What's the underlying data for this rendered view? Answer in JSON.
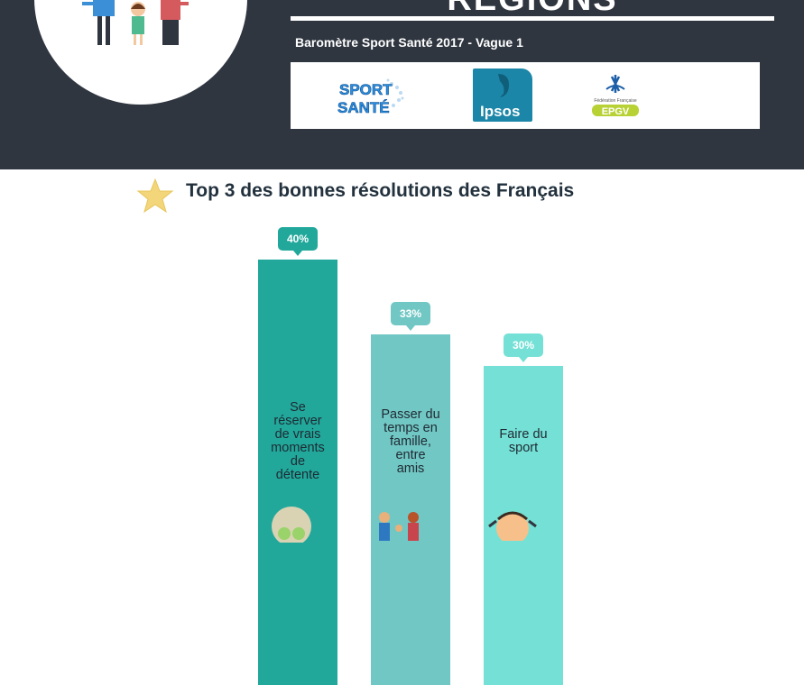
{
  "header": {
    "title": "REGIONS",
    "subtitle": "Baromètre Sport Santé 2017 - Vague 1",
    "logos": [
      "Sport Santé",
      "Ipsos",
      "Fédération Française EPGV"
    ],
    "logo_text": {
      "sport": "SPORT",
      "sante": "SANTÉ",
      "ipsos": "Ipsos",
      "epgv": "EPGV",
      "epgv_small": "Fédération Française"
    }
  },
  "section": {
    "title": "Top 3 des bonnes résolutions des Français"
  },
  "chart_data": {
    "type": "bar",
    "title": "Top 3 des bonnes résolutions des Français",
    "categories": [
      "Se réserver de vrais moments de détente",
      "Passer du temps en famille, entre amis",
      "Faire du sport"
    ],
    "values": [
      40,
      33,
      30
    ],
    "value_labels": [
      "40%",
      "33%",
      "30%"
    ],
    "unit": "%",
    "colors": [
      "#21a89b",
      "#71c7c4",
      "#75e0d6"
    ]
  }
}
